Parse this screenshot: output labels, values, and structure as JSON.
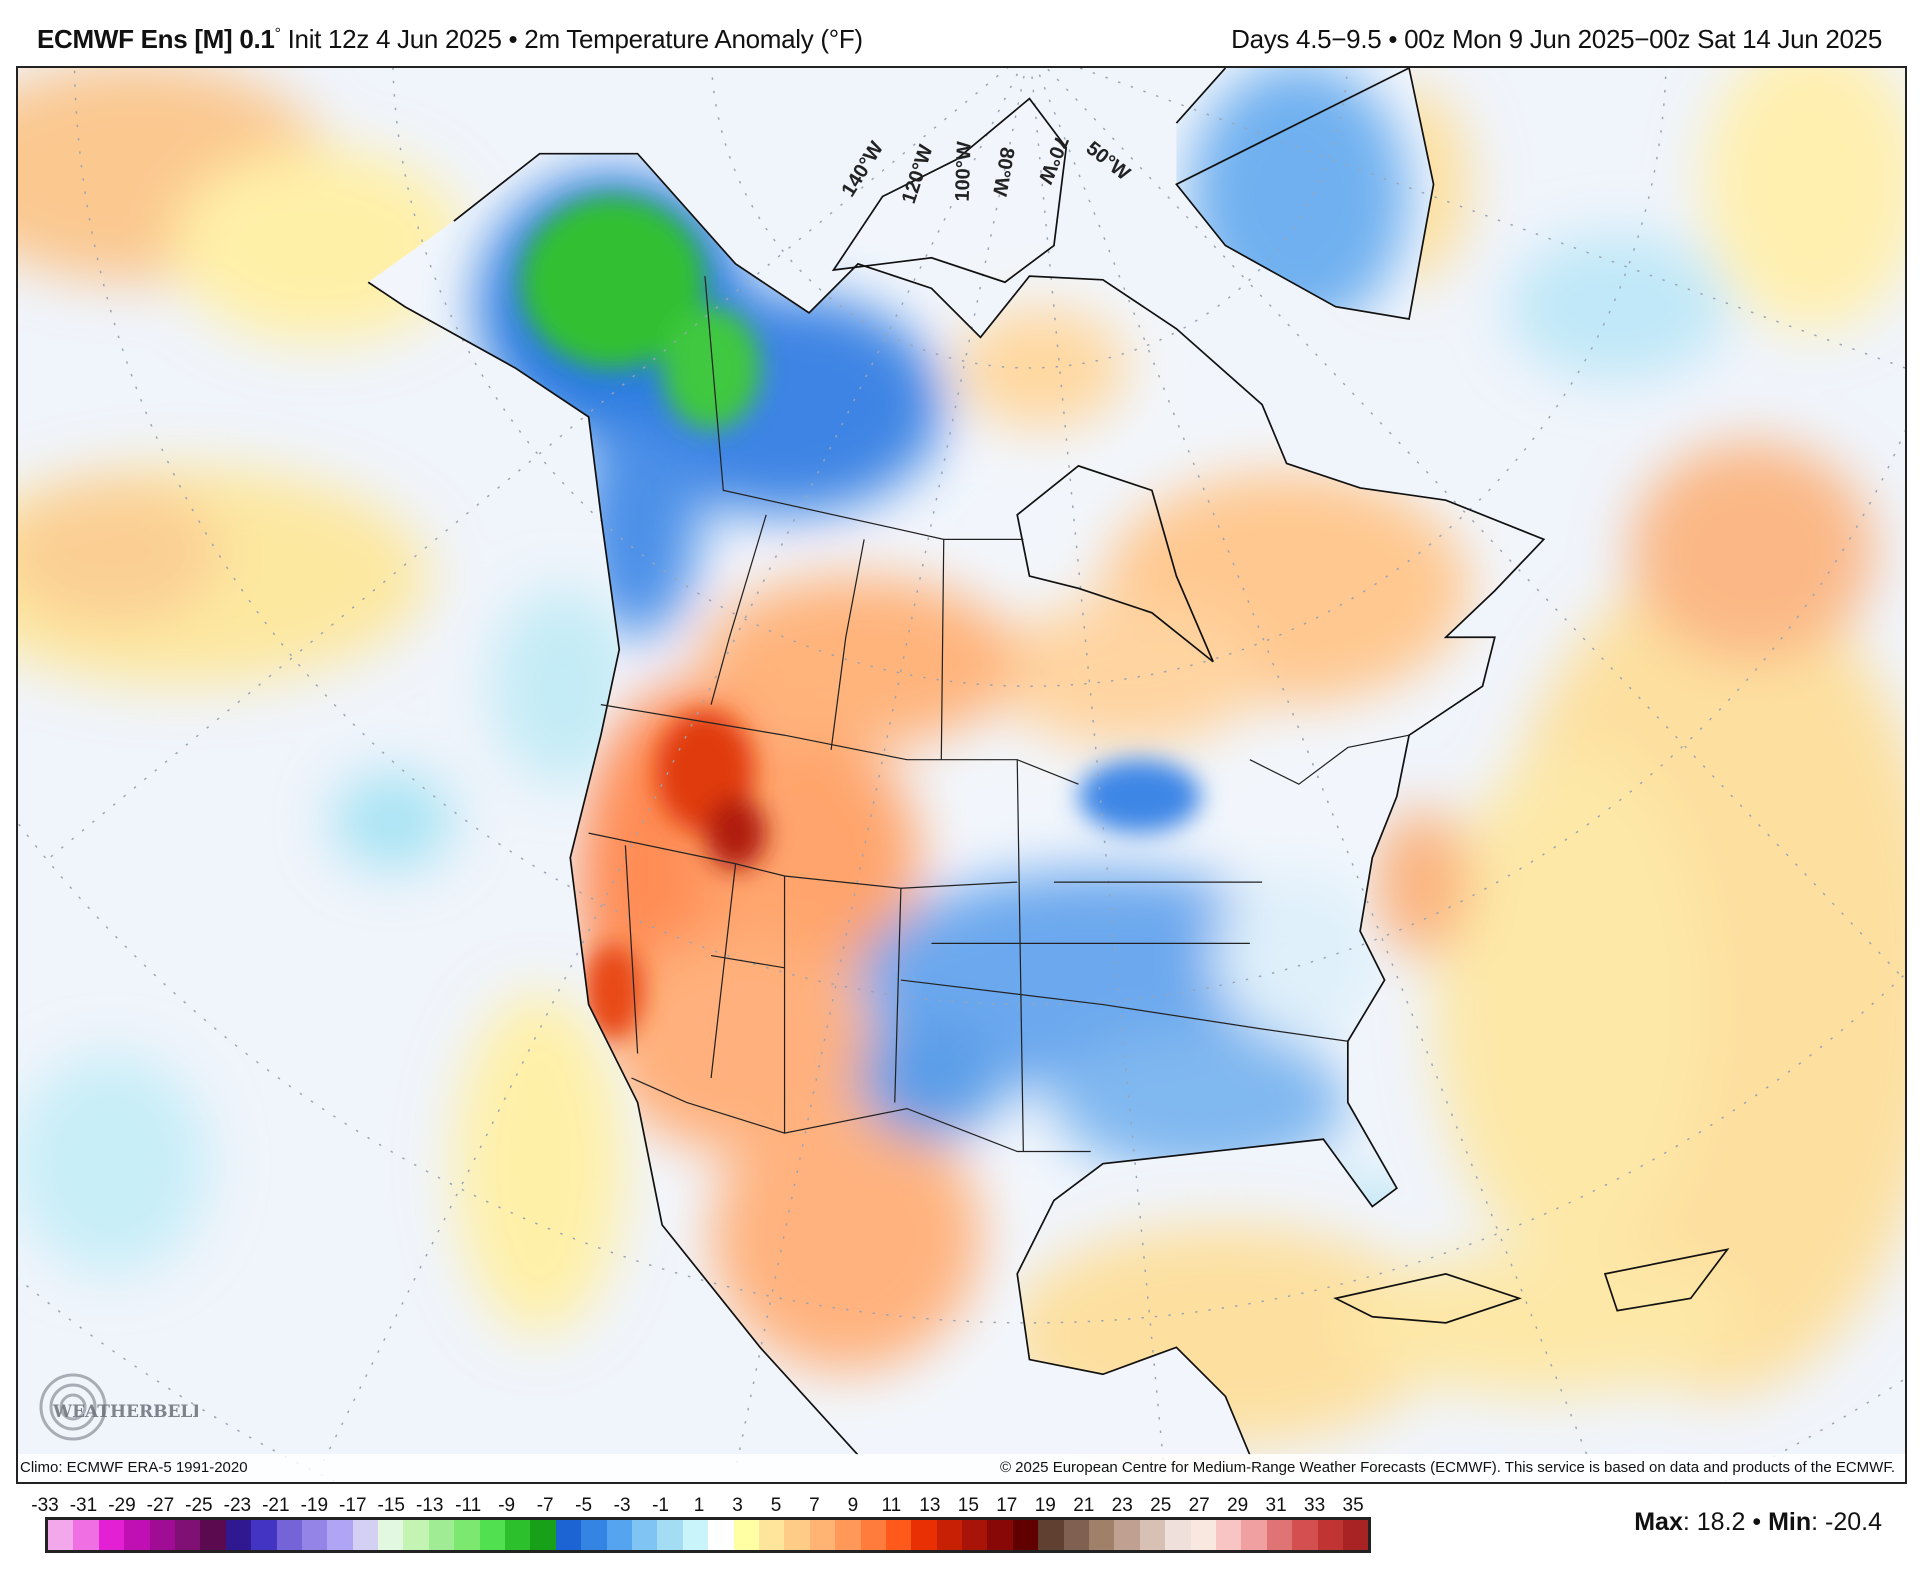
{
  "header": {
    "model": "ECMWF Ens [M] 0.1",
    "degree": "°",
    "left_rest": " Init 12z 4 Jun 2025 • 2m Temperature Anomaly (°F)",
    "right": "Days 4.5−9.5 • 00z Mon 9 Jun 2025−00z Sat 14 Jun 2025"
  },
  "map": {
    "longitude_labels": [
      "140°W",
      "120°W",
      "100°W",
      "80°W",
      "70°W",
      "50°W"
    ],
    "logo_text": "WEATHERBELL",
    "climo": "Climo: ECMWF ERA-5 1991-2020",
    "copyright": "© 2025 European Centre for Medium-Range Weather Forecasts (ECMWF). This service is based on data and products of the ECMWF."
  },
  "colorbar": {
    "labels": [
      "-33",
      "-31",
      "-29",
      "-27",
      "-25",
      "-23",
      "-21",
      "-19",
      "-17",
      "-15",
      "-13",
      "-11",
      "-9",
      "-7",
      "-5",
      "-3",
      "-1",
      "1",
      "3",
      "5",
      "7",
      "9",
      "11",
      "13",
      "15",
      "17",
      "19",
      "21",
      "23",
      "25",
      "27",
      "29",
      "31",
      "33",
      "35"
    ],
    "colors": [
      "#f4a8ec",
      "#f070e4",
      "#e420d4",
      "#c010b4",
      "#a00c94",
      "#801074",
      "#5c0a50",
      "#301890",
      "#4434c4",
      "#7464d8",
      "#9484e8",
      "#b0a4f4",
      "#d4d0f4",
      "#e2f8e0",
      "#c4f4b4",
      "#a0ec94",
      "#7ce870",
      "#50e050",
      "#2cc02c",
      "#18a018",
      "#1c64d4",
      "#3484e4",
      "#54a4f0",
      "#80c4f4",
      "#a4dcf4",
      "#c8f4fa",
      "#ffffff",
      "#ffffa4",
      "#ffe49c",
      "#ffcc88",
      "#ffb474",
      "#ff9858",
      "#ff7c3c",
      "#ff5a1c",
      "#e83004",
      "#c82004",
      "#a81408",
      "#880808",
      "#600000",
      "#604030",
      "#806050",
      "#a08068",
      "#c0a090",
      "#d8c0b4",
      "#f0e0dc",
      "#f8e8e0",
      "#f8c4c4",
      "#f0a0a0",
      "#e07474",
      "#d45050",
      "#c03434",
      "#a82424"
    ]
  },
  "stats": {
    "max_label": "Max",
    "max": ": 18.2 • ",
    "min_label": "Min",
    "min": ": -20.4"
  }
}
